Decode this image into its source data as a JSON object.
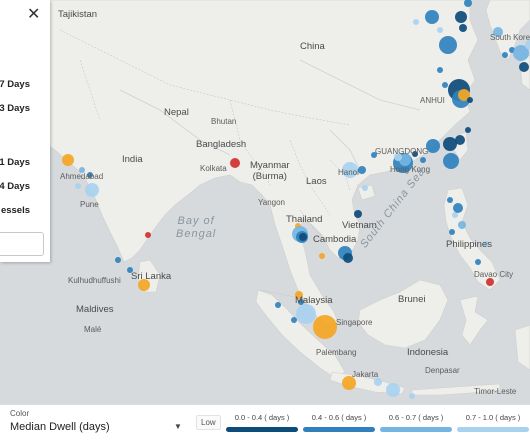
{
  "panel": {
    "close_glyph": "✕",
    "stats": [
      {
        "label": "7 Days"
      },
      {
        "label": "3 Days"
      },
      {
        "label": "1 Days"
      },
      {
        "label": "4 Days"
      },
      {
        "label": "essels"
      }
    ]
  },
  "map_labels": {
    "tajikistan": "Tajikistan",
    "china": "China",
    "nepal": "Nepal",
    "bhutan": "Bhutan",
    "bangladesh": "Bangladesh",
    "kolkata": "Kolkata",
    "india": "India",
    "myanmar": "Myanmar\n(Burma)",
    "laos": "Laos",
    "vietnam": "Vietnam",
    "thailand": "Thailand",
    "cambodia": "Cambodia",
    "bay_of_bengal": "Bay of\nBengal",
    "sri_lanka": "Sri Lanka",
    "maldives": "Maldives",
    "malaysia": "Malaysia",
    "singapore": "Singapore",
    "brunei": "Brunei",
    "indonesia": "Indonesia",
    "philippines": "Philippines",
    "south_china_sea": "South China Sea",
    "hong_kong": "Hong Kong",
    "guangdong": "GUANGDONG",
    "south_korea": "South Korea",
    "davao": "Davao City",
    "palembang": "Palembang",
    "denpasar": "Denpasar",
    "timor_leste": "Timor-Leste",
    "kulhudhuffushi": "Kulhudhuffushi",
    "male": "Malé",
    "yangon": "Yangon",
    "ahmedabad": "Ahmedabad",
    "pune": "Pune",
    "jakarta": "Jakarta",
    "anhui": "ANHUI",
    "hanoi": "Hanoi"
  },
  "legend": {
    "color_title": "Color",
    "color_value": "Median Dwell (days)",
    "low_label": "Low",
    "bins": [
      {
        "label": "0.0 - 0.4 ( days )",
        "color": "#0d4b7a"
      },
      {
        "label": "0.4 - 0.6 ( days )",
        "color": "#2f81bd"
      },
      {
        "label": "0.6 - 0.7 ( days )",
        "color": "#74b5e2"
      },
      {
        "label": "0.7 - 1.0 ( days )",
        "color": "#a8d1ef"
      }
    ]
  },
  "colors": {
    "land": "#eeeeea",
    "water": "#d6dadd",
    "dark_blue": "#0d4b7a",
    "mid_blue": "#2f81bd",
    "light_blue": "#74b5e2",
    "pale_blue": "#a8d1ef",
    "orange": "#f5a623",
    "red": "#d0312d"
  }
}
